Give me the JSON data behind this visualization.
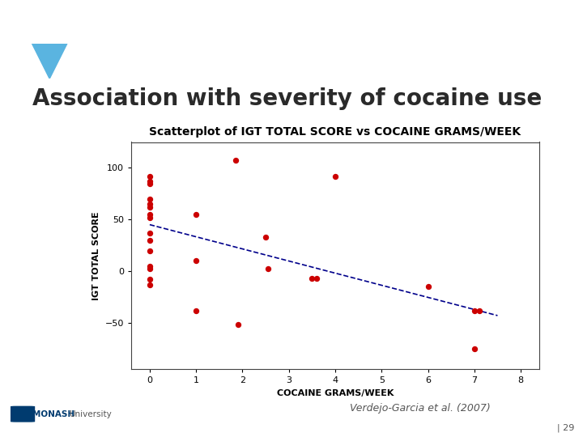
{
  "title": "Association with severity of cocaine use",
  "scatter_title": "Scatterplot of IGT TOTAL SCORE vs COCAINE GRAMS/WEEK",
  "xlabel": "COCAINE GRAMS/WEEK",
  "ylabel": "IGT TOTAL SCORE",
  "citation": "Verdejo-Garcia et al. (2007)",
  "page": "| 29",
  "scatter_x": [
    0,
    0,
    0,
    0,
    0,
    0,
    0,
    0,
    0,
    0,
    0,
    0,
    0,
    0,
    0,
    1,
    1,
    1,
    1.85,
    1.9,
    2.5,
    2.55,
    3.5,
    3.6,
    4.0,
    6.0,
    7.0,
    7.1,
    7.0
  ],
  "scatter_y": [
    92,
    87,
    85,
    70,
    65,
    62,
    55,
    52,
    37,
    30,
    20,
    5,
    2,
    -8,
    -13,
    55,
    10,
    -38,
    107,
    -52,
    33,
    2,
    -7,
    -7,
    92,
    -15,
    -38,
    -38,
    -75
  ],
  "trend_x": [
    0,
    7.5
  ],
  "trend_y": [
    45,
    -43
  ],
  "dot_color": "#cc0000",
  "line_color": "#00008b",
  "slide_bg": "#ffffff",
  "header_color": "#5ab4e0",
  "plot_outer_bg": "#d8cfc0",
  "plot_inner_bg": "#ffffff",
  "xlim": [
    -0.4,
    8.4
  ],
  "ylim": [
    -95,
    125
  ],
  "xticks": [
    0,
    1,
    2,
    3,
    4,
    5,
    6,
    7,
    8
  ],
  "yticks": [
    -50,
    0,
    50,
    100
  ],
  "title_fontsize": 20,
  "title_color": "#2a2a2a",
  "scatter_title_fontsize": 10,
  "axis_label_fontsize": 8,
  "tick_fontsize": 8
}
